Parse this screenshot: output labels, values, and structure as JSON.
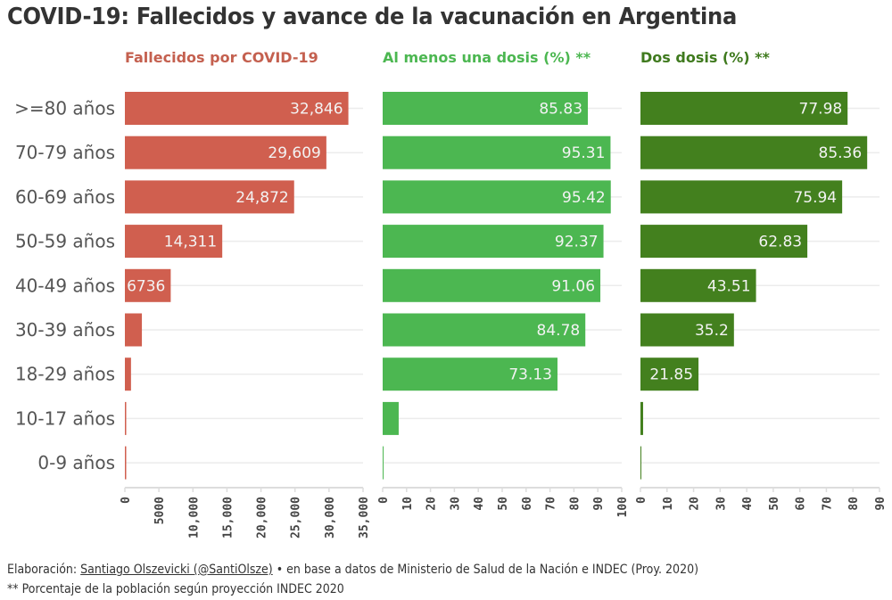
{
  "title": "COVID-19: Fallecidos y avance de la vacunación en Argentina",
  "footer": {
    "prefix": "Elaboración: ",
    "author": "Santiago Olszevicki (@SantiOlsze)",
    "suffix": " • en base a datos de Ministerio de Salud de la Nación e INDEC (Proy. 2020)",
    "note": "** Porcentaje de la población según proyección INDEC 2020"
  },
  "chart_data": [
    {
      "type": "bar",
      "orientation": "horizontal",
      "title": "Fallecidos por COVID-19",
      "color": "#d05f4f",
      "title_color": "#c4604f",
      "categories": [
        ">=80 años",
        "70-79 años",
        "60-69 años",
        "50-59 años",
        "40-49 años",
        "30-39 años",
        "18-29 años",
        "10-17 años",
        "0-9 años"
      ],
      "values": [
        32846,
        29609,
        24872,
        14311,
        6736,
        2500,
        900,
        40,
        30
      ],
      "value_labels": [
        "32,846",
        "29,609",
        "24,872",
        "14,311",
        "6736",
        "",
        "",
        "",
        ""
      ],
      "xlim": [
        0,
        35000
      ],
      "ticks": [
        0,
        5000,
        10000,
        15000,
        20000,
        25000,
        30000,
        35000
      ],
      "tick_labels": [
        "0",
        "5000",
        "10,000",
        "15,000",
        "20,000",
        "25,000",
        "30,000",
        "35,000"
      ],
      "grid": true
    },
    {
      "type": "bar",
      "orientation": "horizontal",
      "title": "Al menos una dosis (%) **",
      "color": "#4cb751",
      "title_color": "#4cb751",
      "categories": [
        ">=80 años",
        "70-79 años",
        "60-69 años",
        "50-59 años",
        "40-49 años",
        "30-39 años",
        "18-29 años",
        "10-17 años",
        "0-9 años"
      ],
      "values": [
        85.83,
        95.31,
        95.42,
        92.37,
        91.06,
        84.78,
        73.13,
        6.7,
        0
      ],
      "value_labels": [
        "85.83",
        "95.31",
        "95.42",
        "92.37",
        "91.06",
        "84.78",
        "73.13",
        "",
        ""
      ],
      "xlim": [
        0,
        100
      ],
      "ticks": [
        0,
        10,
        20,
        30,
        40,
        50,
        60,
        70,
        80,
        90,
        100
      ],
      "tick_labels": [
        "0",
        "10",
        "20",
        "30",
        "40",
        "50",
        "60",
        "70",
        "80",
        "90",
        "100"
      ],
      "grid": true
    },
    {
      "type": "bar",
      "orientation": "horizontal",
      "title": "Dos dosis (%) **",
      "color": "#43801e",
      "title_color": "#3f7a1e",
      "categories": [
        ">=80 años",
        "70-79 años",
        "60-69 años",
        "50-59 años",
        "40-49 años",
        "30-39 años",
        "18-29 años",
        "10-17 años",
        "0-9 años"
      ],
      "values": [
        77.98,
        85.36,
        75.94,
        62.83,
        43.51,
        35.2,
        21.85,
        1.0,
        0
      ],
      "value_labels": [
        "77.98",
        "85.36",
        "75.94",
        "62.83",
        "43.51",
        "35.2",
        "21.85",
        "",
        ""
      ],
      "xlim": [
        0,
        90
      ],
      "ticks": [
        0,
        10,
        20,
        30,
        40,
        50,
        60,
        70,
        80,
        90
      ],
      "tick_labels": [
        "0",
        "10",
        "20",
        "30",
        "40",
        "50",
        "60",
        "70",
        "80",
        "90"
      ],
      "grid": true
    }
  ]
}
